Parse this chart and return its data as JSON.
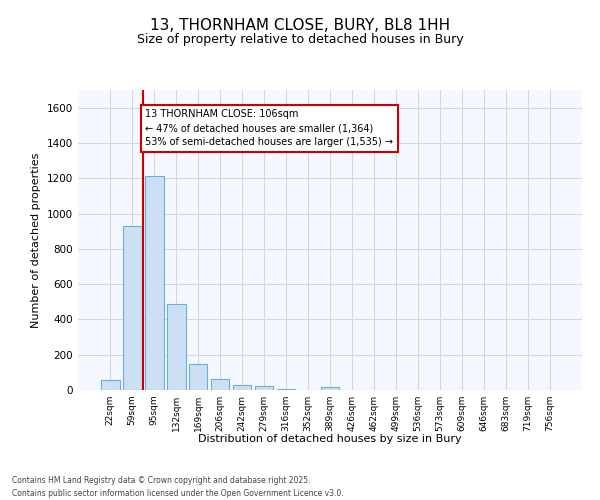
{
  "title_line1": "13, THORNHAM CLOSE, BURY, BL8 1HH",
  "title_line2": "Size of property relative to detached houses in Bury",
  "xlabel": "Distribution of detached houses by size in Bury",
  "ylabel": "Number of detached properties",
  "categories": [
    "22sqm",
    "59sqm",
    "95sqm",
    "132sqm",
    "169sqm",
    "206sqm",
    "242sqm",
    "279sqm",
    "316sqm",
    "352sqm",
    "389sqm",
    "426sqm",
    "462sqm",
    "499sqm",
    "536sqm",
    "573sqm",
    "609sqm",
    "646sqm",
    "683sqm",
    "719sqm",
    "756sqm"
  ],
  "values": [
    55,
    930,
    1210,
    490,
    150,
    60,
    30,
    20,
    5,
    0,
    15,
    0,
    0,
    0,
    0,
    0,
    0,
    0,
    0,
    0,
    0
  ],
  "bar_color": "#ccdff5",
  "bar_edge_color": "#6baed6",
  "vline_position": 1.5,
  "vline_color": "#cc0000",
  "annotation_text": "13 THORNHAM CLOSE: 106sqm\n← 47% of detached houses are smaller (1,364)\n53% of semi-detached houses are larger (1,535) →",
  "ann_box_facecolor": "#ffffff",
  "ann_box_edgecolor": "#cc0000",
  "ylim": [
    0,
    1700
  ],
  "yticks": [
    0,
    200,
    400,
    600,
    800,
    1000,
    1200,
    1400,
    1600
  ],
  "plot_bg": "#f5f8ff",
  "fig_bg": "#ffffff",
  "grid_color": "#d0d8e8",
  "footer_line1": "Contains HM Land Registry data © Crown copyright and database right 2025.",
  "footer_line2": "Contains public sector information licensed under the Open Government Licence v3.0."
}
